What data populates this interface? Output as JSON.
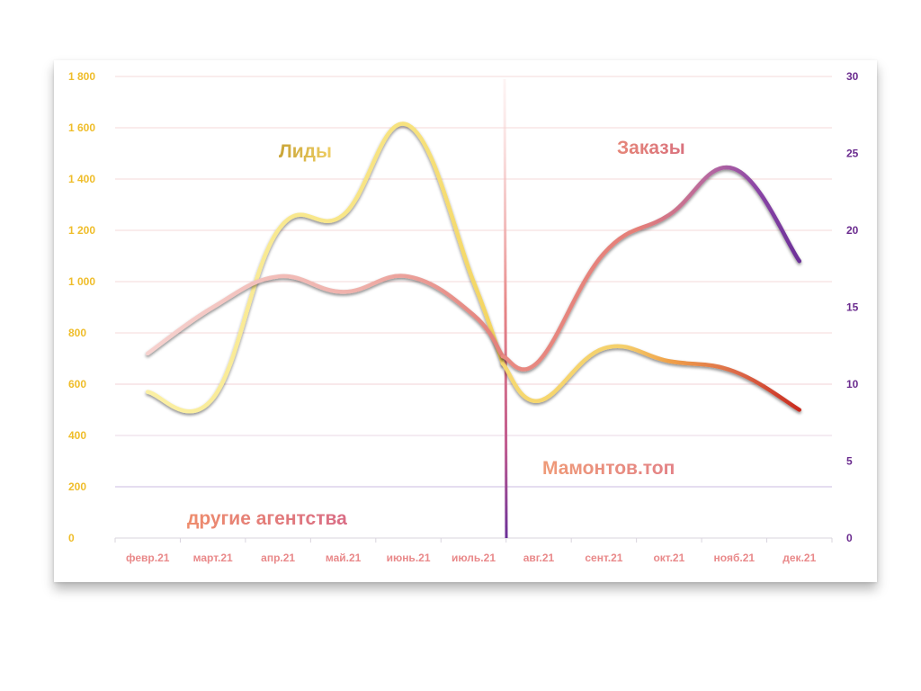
{
  "chart_data": {
    "type": "line",
    "categories": [
      "февр.21",
      "март.21",
      "апр.21",
      "май.21",
      "июнь.21",
      "июль.21",
      "авг.21",
      "сент.21",
      "окт.21",
      "нояб.21",
      "дек.21"
    ],
    "y_left": {
      "range": [
        0,
        1800
      ],
      "ticks": [
        {
          "value": 0,
          "label": "0"
        },
        {
          "value": 200,
          "label": "200"
        },
        {
          "value": 400,
          "label": "400"
        },
        {
          "value": 600,
          "label": "600"
        },
        {
          "value": 800,
          "label": "800"
        },
        {
          "value": 1000,
          "label": "1 000"
        },
        {
          "value": 1200,
          "label": "1 200"
        },
        {
          "value": 1400,
          "label": "1 400"
        },
        {
          "value": 1600,
          "label": "1 600"
        },
        {
          "value": 1800,
          "label": "1 800"
        }
      ]
    },
    "y_right": {
      "range": [
        0,
        30
      ],
      "ticks": [
        {
          "value": 0,
          "label": "0"
        },
        {
          "value": 5,
          "label": "5"
        },
        {
          "value": 10,
          "label": "10"
        },
        {
          "value": 15,
          "label": "15"
        },
        {
          "value": 20,
          "label": "20"
        },
        {
          "value": 25,
          "label": "25"
        },
        {
          "value": 30,
          "label": "30"
        }
      ]
    },
    "series": [
      {
        "name": "Лиды",
        "axis": "left",
        "values_before": [
          570,
          545,
          1200,
          1260,
          1610,
          1000,
          680
        ],
        "values_after": [
          680,
          535,
          740,
          690,
          650,
          500
        ]
      },
      {
        "name": "Заказы",
        "axis": "right",
        "values_before": [
          12,
          15,
          17,
          16,
          17,
          14.5,
          11.8
        ],
        "values_after": [
          11.8,
          11.5,
          18.5,
          21,
          24,
          18
        ]
      }
    ],
    "divider_at": "авг.21",
    "annotations": {
      "left_bottom": "другие агентства",
      "right_bottom": "Мамонтов.топ"
    },
    "grid": true,
    "colors": {
      "left_axis": "#efbd2a",
      "right_axis": "#6b2c8f",
      "x_axis": "#e9898a",
      "leads_light": "#fbf0a4",
      "leads_mid": "#f6d96f",
      "leads_orange": "#f0a24a",
      "leads_red": "#c8281d",
      "orders_light": "#f6c9c5",
      "orders_mid": "#ea8f86",
      "orders_purple": "#7a3aa1"
    }
  }
}
